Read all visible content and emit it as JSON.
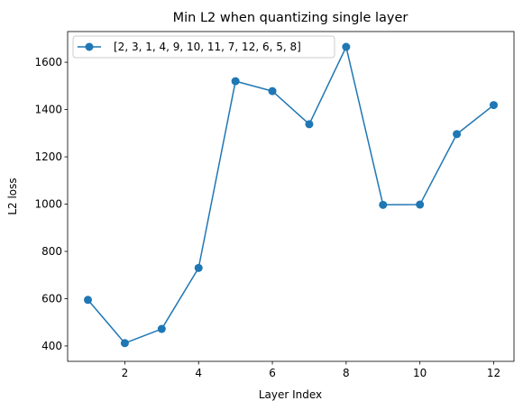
{
  "chart_data": {
    "type": "line",
    "title": "Min L2 when quantizing single layer",
    "xlabel": "Layer Index",
    "ylabel": "L2 loss",
    "xlim": [
      0.45,
      12.55
    ],
    "ylim": [
      335,
      1730
    ],
    "xticks": [
      2,
      4,
      6,
      8,
      10,
      12
    ],
    "yticks": [
      400,
      600,
      800,
      1000,
      1200,
      1400,
      1600
    ],
    "grid": false,
    "legend_position": "top-left",
    "series": [
      {
        "name": "[2, 3, 1, 4, 9, 10, 11, 7, 12, 6, 5, 8]",
        "color": "#1f77b4",
        "marker": "circle",
        "x": [
          1,
          2,
          3,
          4,
          5,
          6,
          7,
          8,
          9,
          10,
          11,
          12
        ],
        "y": [
          595,
          412,
          472,
          730,
          1520,
          1478,
          1338,
          1665,
          997,
          998,
          1296,
          1419
        ]
      }
    ]
  }
}
